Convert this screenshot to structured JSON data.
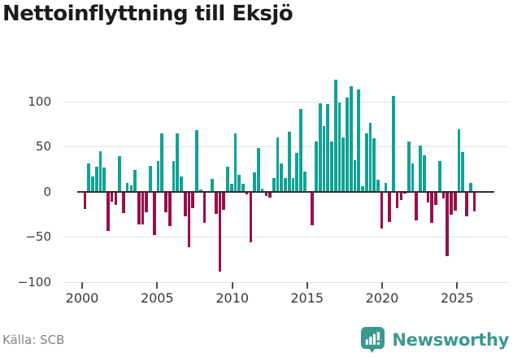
{
  "title": "Nettoinflyttning till Eksjö",
  "footer": {
    "source": "Källa: SCB",
    "brand": "Newsworthy"
  },
  "colors": {
    "positive_bar": "#10a295",
    "negative_bar": "#970f4d",
    "brand_teal": "#3b9790",
    "zero_axis": "#2d2d2d",
    "gridline": "#e4e4e4",
    "title_text": "#1b1b1b",
    "muted_text": "#848484"
  },
  "chart_data": {
    "type": "bar",
    "title": "Nettoinflyttning till Eksjö",
    "period": "quarterly",
    "x_start": "2000-Q1",
    "x_end": "2025-Q2",
    "x_tick_labels": [
      "2000",
      "2005",
      "2010",
      "2015",
      "2020",
      "2025"
    ],
    "y_ticks": [
      100,
      50,
      0,
      -50,
      -100
    ],
    "y_tick_labels": [
      "100",
      "50",
      "0",
      "−50",
      "−100"
    ],
    "ylim": [
      -100,
      130
    ],
    "grid": true,
    "legend": false,
    "series": [
      {
        "values": [
          -18,
          31,
          17,
          28,
          45,
          27,
          -43,
          -10,
          -14,
          39,
          -23,
          10,
          7,
          24,
          -35,
          -35,
          -22,
          29,
          -47,
          34,
          65,
          -22,
          -37,
          34,
          65,
          17,
          -26,
          -61,
          -17,
          68,
          2,
          -34,
          1,
          14,
          -24,
          -88,
          -19,
          28,
          9,
          65,
          19,
          9,
          -2,
          -55,
          21,
          48,
          3,
          -4,
          -6,
          15,
          60,
          31,
          15,
          66,
          15,
          43,
          92,
          22,
          1,
          -36,
          56,
          98,
          73,
          97,
          56,
          124,
          99,
          60,
          104,
          117,
          35,
          113,
          6,
          65,
          76,
          59,
          13,
          -40,
          10,
          -33,
          106,
          -17,
          -8,
          -1,
          56,
          31,
          -31,
          51,
          40,
          -11,
          -34,
          -14,
          34,
          -7,
          -71,
          -25,
          -20,
          69,
          44,
          -26,
          10,
          -21
        ]
      }
    ]
  }
}
